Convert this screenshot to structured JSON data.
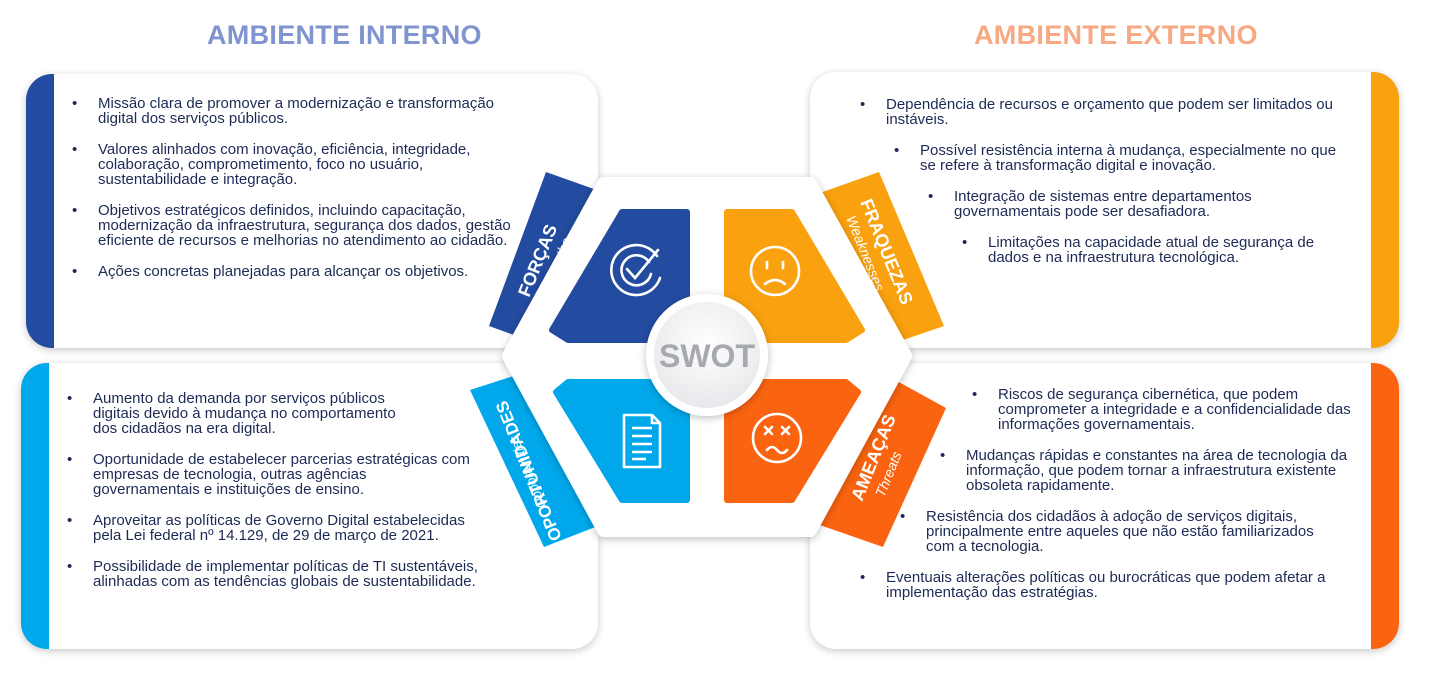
{
  "headers": {
    "internal": "AMBIENTE INTERNO",
    "external": "AMBIENTE EXTERNO"
  },
  "colors": {
    "forcas": "#234b9f",
    "fraquezas": "#f9a10e",
    "oportunidades": "#00a8eb",
    "ameacas": "#fa6410"
  },
  "center": {
    "label": "SWOT"
  },
  "quadrants": {
    "forcas": {
      "title": "FORÇAS",
      "subtitle": "Strengths",
      "icon": "target-check-icon"
    },
    "fraquezas": {
      "title": "FRAQUEZAS",
      "subtitle": "Weaknesses",
      "icon": "sad-face-icon"
    },
    "oportunidades": {
      "title": "OPORTUNIDADES",
      "subtitle": "Opportunities",
      "icon": "document-icon"
    },
    "ameacas": {
      "title": "AMEAÇAS",
      "subtitle": "Threats",
      "icon": "dizzy-face-icon"
    }
  },
  "cards": {
    "forcas": {
      "items": [
        "Missão clara de promover a modernização e transformação digital dos serviços públicos.",
        "Valores alinhados com inovação, eficiência, integridade, colaboração, comprometimento, foco no usuário, sustentabilidade e integração.",
        "Objetivos estratégicos definidos, incluindo capacitação, modernização da infraestrutura, segurança dos dados, gestão eficiente de recursos e melhorias no atendimento ao cidadão.",
        "Ações concretas planejadas para alcançar os objetivos."
      ]
    },
    "fraquezas": {
      "items": [
        "Dependência de recursos e orçamento que podem ser limitados ou instáveis.",
        "Possível resistência interna à mudança, especialmente no que se refere à transformação digital e inovação.",
        "Integração de sistemas entre departamentos governamentais pode ser desafiadora.",
        "Limitações na capacidade atual de segurança de dados e na infraestrutura tecnológica."
      ]
    },
    "oportunidades": {
      "items": [
        "Aumento da demanda por serviços públicos digitais devido à mudança no comportamento dos cidadãos na era digital.",
        "Oportunidade de estabelecer parcerias estratégicas com empresas de tecnologia, outras agências governamentais e instituições de ensino.",
        "Aproveitar as políticas de Governo Digital estabelecidas pela Lei federal nº 14.129, de 29 de março de 2021.",
        "Possibilidade de implementar políticas de TI sustentáveis, alinhadas com as tendências globais de sustentabilidade."
      ]
    },
    "ameacas": {
      "items": [
        "Riscos de segurança cibernética, que podem comprometer a integridade e a confidencialidade das informações governamentais.",
        "Mudanças rápidas e constantes na área de tecnologia da informação, que podem tornar a infraestrutura existente obsoleta rapidamente.",
        "Resistência dos cidadãos à adoção de serviços digitais, principalmente entre aqueles que não estão familiarizados com a tecnologia.",
        "Eventuais alterações políticas ou burocráticas que podem afetar a implementação das estratégias."
      ]
    }
  }
}
